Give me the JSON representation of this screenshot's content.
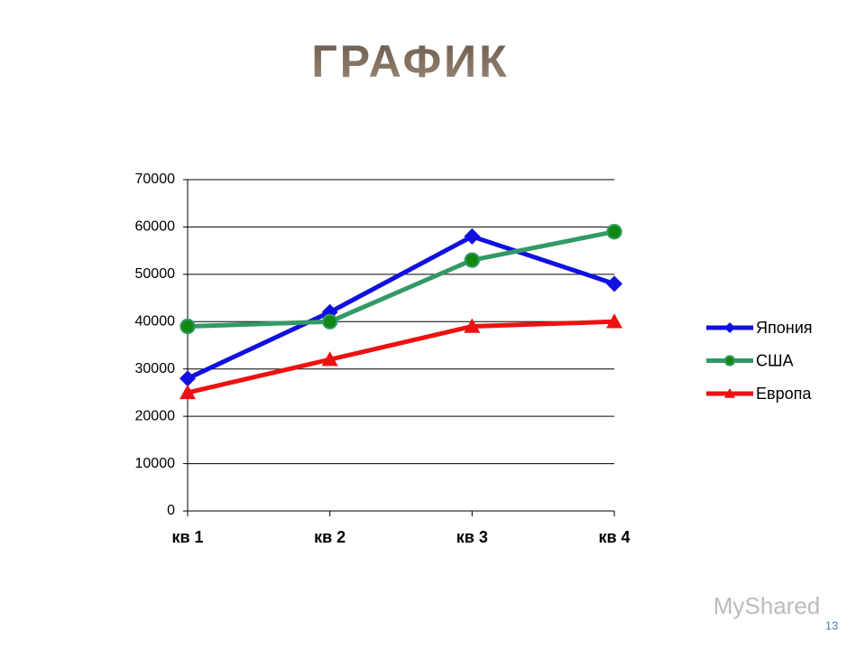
{
  "chart_data": {
    "type": "line",
    "title": "ГРАФИК",
    "categories": [
      "кв 1",
      "кв 2",
      "кв 3",
      "кв 4"
    ],
    "series": [
      {
        "name": "Япония",
        "color": "#1010e0",
        "marker": "diamond",
        "values": [
          28000,
          42000,
          58000,
          48000
        ]
      },
      {
        "name": "США",
        "color": "#339966",
        "marker": "circle",
        "values": [
          39000,
          40000,
          53000,
          59000
        ]
      },
      {
        "name": "Европа",
        "color": "#ee1111",
        "marker": "triangle",
        "values": [
          25000,
          32000,
          39000,
          40000
        ]
      }
    ],
    "ylim": [
      0,
      70000
    ],
    "yticks": [
      0,
      10000,
      20000,
      30000,
      40000,
      50000,
      60000,
      70000
    ],
    "grid": true,
    "legend": "right"
  },
  "footer": {
    "page_number": "13",
    "watermark": "MyShared"
  }
}
